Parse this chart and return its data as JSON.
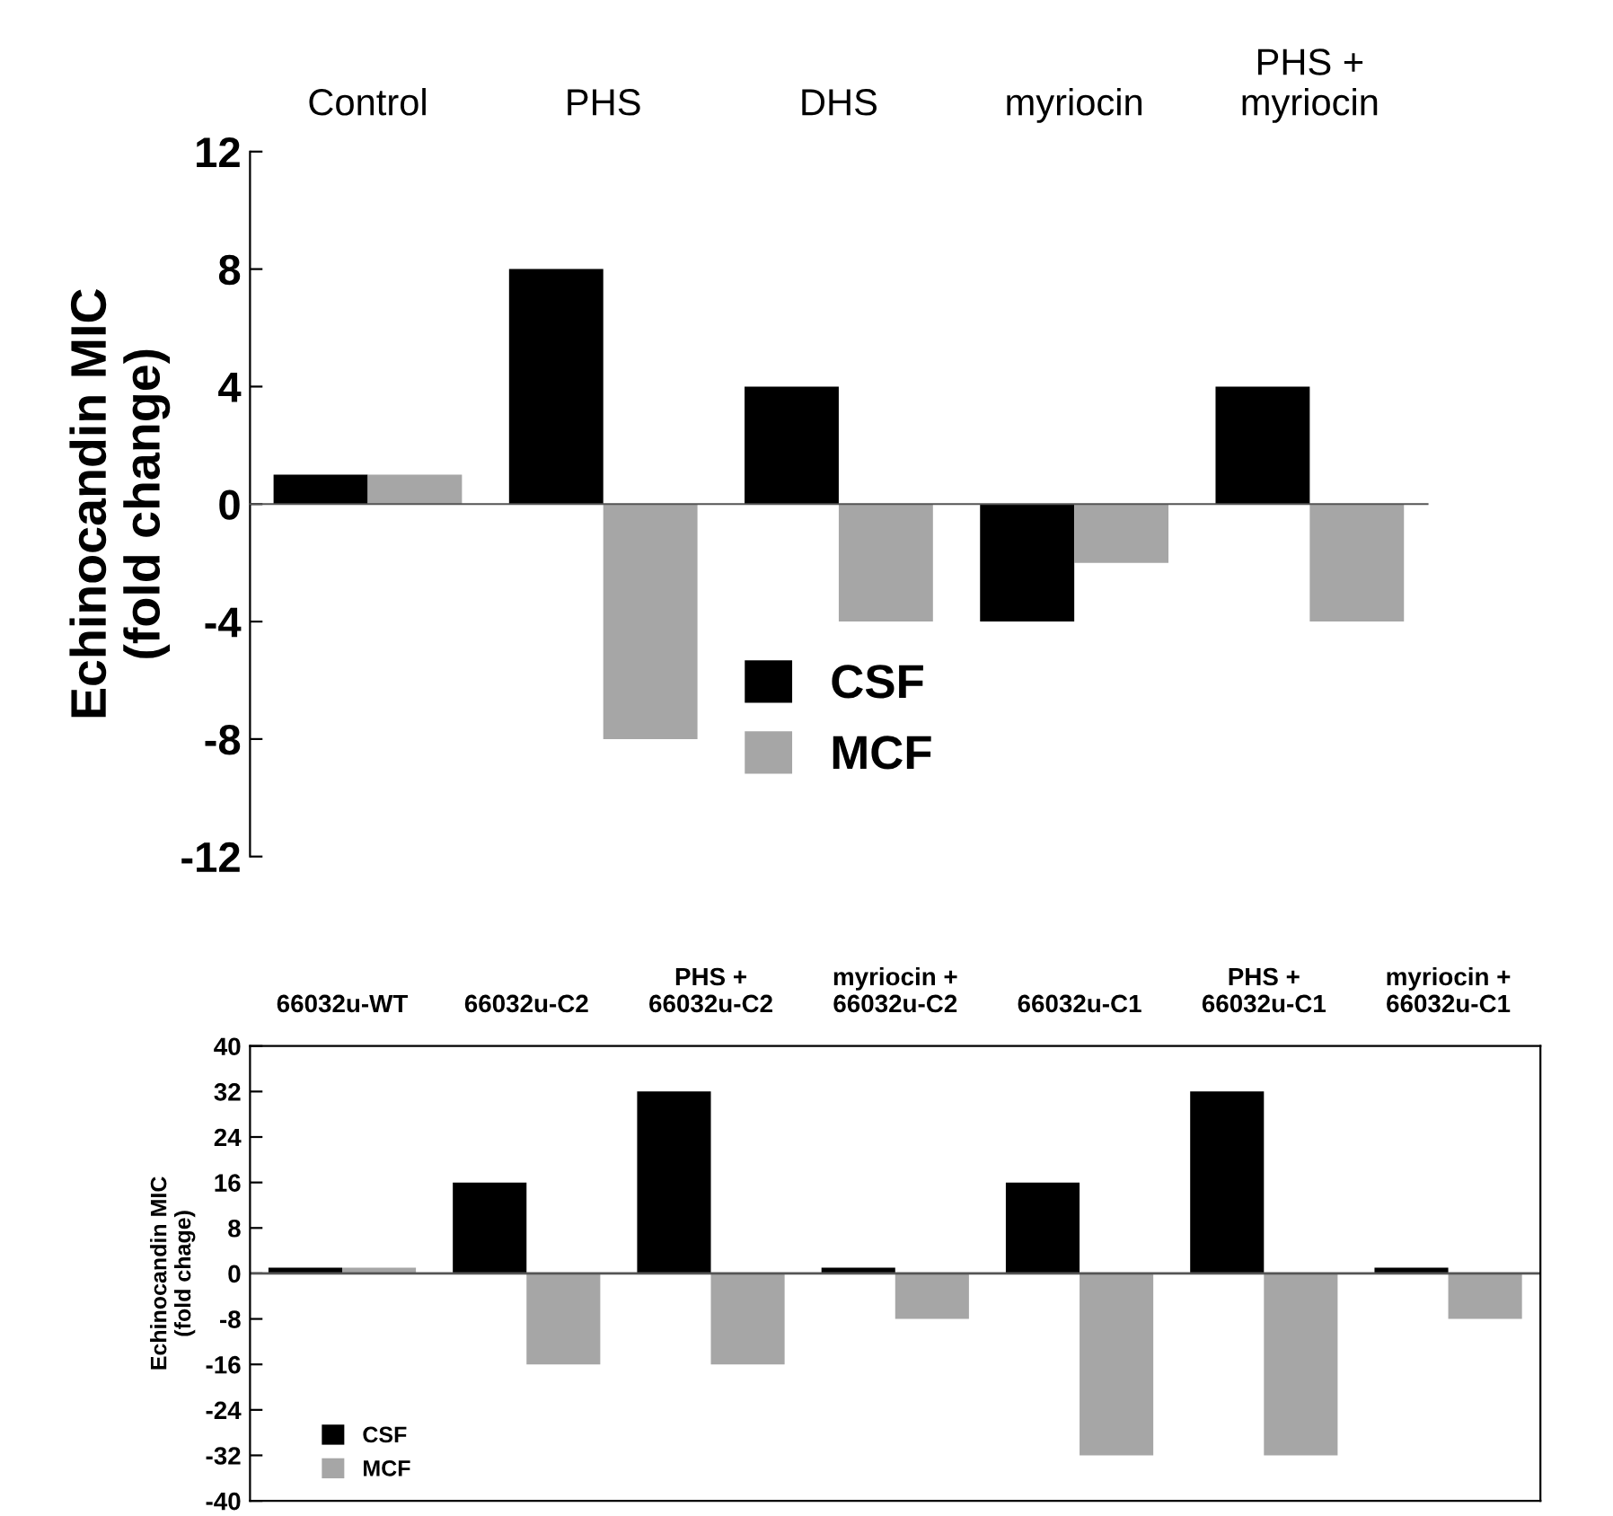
{
  "chart_data": [
    {
      "type": "bar",
      "ylabel": "Echinocandin MIC\n(fold change)",
      "categories": [
        "Control",
        "PHS",
        "DHS",
        "myriocin",
        "PHS +\nmyriocin"
      ],
      "series": [
        {
          "name": "CSF",
          "color": "#000000",
          "values": [
            1,
            8,
            4,
            -4,
            4
          ]
        },
        {
          "name": "MCF",
          "color": "#a6a6a6",
          "values": [
            1,
            -8,
            -4,
            -2,
            -4
          ]
        }
      ],
      "ylim": [
        -12,
        12
      ],
      "yticks": [
        -12,
        -8,
        -4,
        0,
        4,
        8,
        12
      ],
      "legend": "bottom"
    },
    {
      "type": "bar",
      "ylabel": "Echinocandin MIC\n(fold chage)",
      "categories": [
        "66032u-WT",
        "66032u-C2",
        "PHS +\n66032u-C2",
        "myriocin +\n66032u-C2",
        "66032u-C1",
        "PHS +\n66032u-C1",
        "myriocin +\n66032u-C1"
      ],
      "series": [
        {
          "name": "CSF",
          "color": "#000000",
          "values": [
            1,
            16,
            32,
            1,
            16,
            32,
            1
          ]
        },
        {
          "name": "MCF",
          "color": "#a6a6a6",
          "values": [
            1,
            -16,
            -16,
            -8,
            -32,
            -32,
            -8
          ]
        }
      ],
      "ylim": [
        -40,
        40
      ],
      "yticks": [
        -40,
        -32,
        -24,
        -16,
        -8,
        0,
        8,
        16,
        24,
        32,
        40
      ],
      "legend": "bottom left"
    }
  ]
}
